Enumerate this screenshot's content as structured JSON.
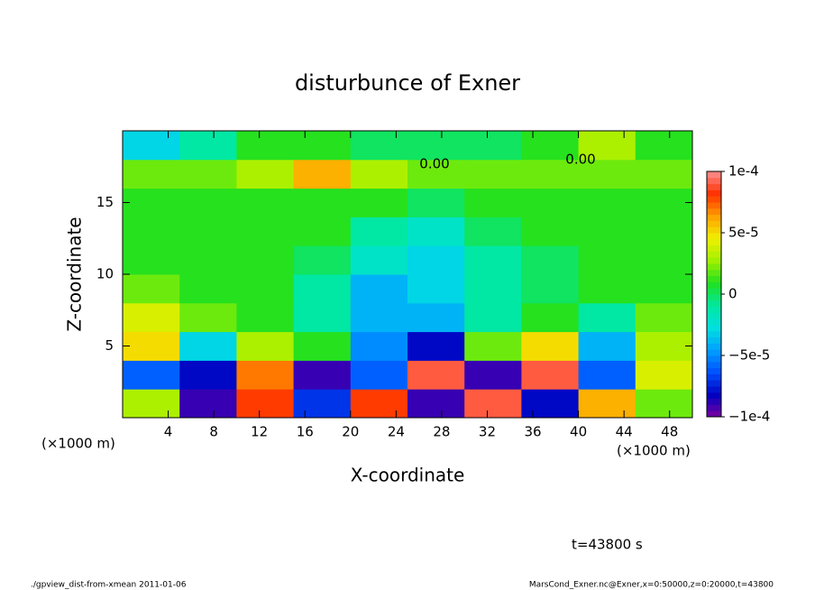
{
  "chart_data": {
    "type": "heatmap",
    "title": "disturbunce of Exner",
    "x_label": "X-coordinate",
    "y_label": "Z-coordinate",
    "x_unit": "(×1000 m)",
    "time_label": "t=43800 s",
    "footer_left": "./gpview_dist-from-xmean  2011-01-06",
    "footer_right": "MarsCond_Exner.nc@Exner,x=0:50000,z=0:20000,t=43800",
    "annotations": [
      "0.00",
      "0.00"
    ],
    "x": [
      2.5,
      7.5,
      12.5,
      17.5,
      22.5,
      27.5,
      32.5,
      37.5,
      42.5,
      47.5
    ],
    "y": [
      1,
      3,
      5,
      7,
      9,
      11,
      13,
      15,
      17,
      19
    ],
    "z": [
      [
        3e-05,
        -9e-05,
        8e-05,
        -7e-05,
        8e-05,
        -9e-05,
        9e-05,
        -8e-05,
        6e-05,
        2e-05
      ],
      [
        -6e-05,
        -8e-05,
        7e-05,
        -9e-05,
        -6e-05,
        9e-05,
        -9e-05,
        9e-05,
        -6e-05,
        4e-05
      ],
      [
        5e-05,
        -3e-05,
        3e-05,
        1e-05,
        -5e-05,
        -8e-05,
        2e-05,
        5e-05,
        -4e-05,
        3e-05
      ],
      [
        4e-05,
        2e-05,
        1e-05,
        -1e-05,
        -4e-05,
        -4e-05,
        -1e-05,
        1e-05,
        -1e-05,
        2e-05
      ],
      [
        2e-05,
        1e-05,
        1e-05,
        -1e-05,
        -4e-05,
        -3e-05,
        -1e-05,
        0,
        1e-05,
        1e-05
      ],
      [
        1e-05,
        1e-05,
        1e-05,
        0,
        -2e-05,
        -3e-05,
        -1e-05,
        0,
        1e-05,
        1e-05
      ],
      [
        1e-05,
        1e-05,
        1e-05,
        1e-05,
        -1e-05,
        -2e-05,
        0,
        1e-05,
        1e-05,
        1e-05
      ],
      [
        1e-05,
        1e-05,
        1e-05,
        1e-05,
        1e-05,
        0,
        1e-05,
        1e-05,
        1e-05,
        1e-05
      ],
      [
        2e-05,
        2e-05,
        3e-05,
        6e-05,
        3e-05,
        2e-05,
        2e-05,
        2e-05,
        2e-05,
        2e-05
      ],
      [
        -3e-05,
        -1e-05,
        1e-05,
        1e-05,
        0,
        0,
        0,
        1e-05,
        3e-05,
        1e-05
      ]
    ],
    "xlim": [
      0,
      50
    ],
    "ylim": [
      0,
      20
    ],
    "xticks": [
      4,
      8,
      12,
      16,
      20,
      24,
      28,
      32,
      36,
      40,
      44,
      48
    ],
    "yticks": [
      5,
      10,
      15
    ],
    "zlim": [
      -0.0001,
      0.0001
    ],
    "zticks": [
      {
        "value": -0.0001,
        "label": "−1e-4"
      },
      {
        "value": -5e-05,
        "label": "−5e-5"
      },
      0,
      {
        "value": 5e-05,
        "label": "5e-5"
      },
      {
        "value": 0.0001,
        "label": "1e-4"
      }
    ],
    "colormap": [
      "#7a00a0",
      "#0000c0",
      "#0050ff",
      "#00a0ff",
      "#00e0e0",
      "#00e8a0",
      "#20e020",
      "#a0f000",
      "#f0f000",
      "#ffa000",
      "#ff3000",
      "#ff9090"
    ]
  }
}
